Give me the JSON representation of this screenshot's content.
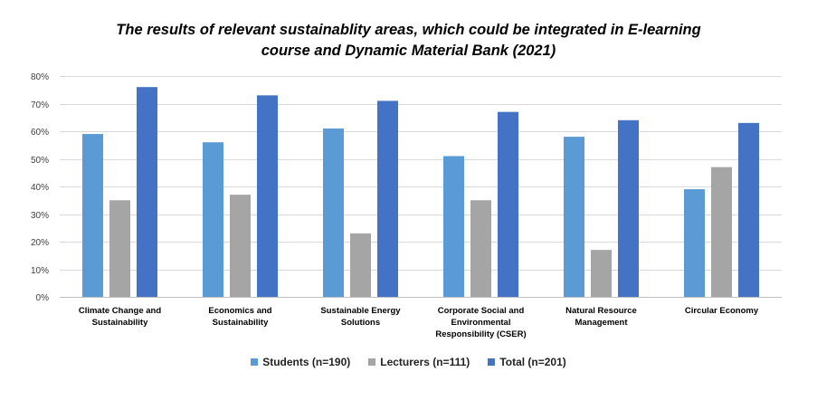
{
  "chart_data": {
    "type": "bar",
    "title_lines": [
      "The results of relevant sustainablity areas, which could be integrated in E-learning",
      "course and Dynamic Material Bank (2021)"
    ],
    "categories": [
      [
        "Climate Change and",
        "Sustainability"
      ],
      [
        "Economics and",
        "Sustainability"
      ],
      [
        "Sustainable Energy",
        "Solutions"
      ],
      [
        "Corporate Social and",
        "Environmental",
        "Responsibility (CSER)"
      ],
      [
        "Natural Resource",
        "Management"
      ],
      [
        "Circular Economy"
      ]
    ],
    "series": [
      {
        "name": "Students (n=190)",
        "color": "#5b9bd5",
        "values": [
          59,
          56,
          61,
          51,
          58,
          39
        ]
      },
      {
        "name": "Lecturers (n=111)",
        "color": "#a5a5a5",
        "values": [
          35,
          37,
          23,
          35,
          17,
          47
        ]
      },
      {
        "name": "Total (n=201)",
        "color": "#4472c4",
        "values": [
          76,
          73,
          71,
          67,
          64,
          63
        ]
      }
    ],
    "yticks": [
      "0%",
      "10%",
      "20%",
      "30%",
      "40%",
      "50%",
      "60%",
      "70%",
      "80%"
    ],
    "ylim": [
      0,
      80
    ],
    "grid": true,
    "legend_position": "bottom"
  }
}
